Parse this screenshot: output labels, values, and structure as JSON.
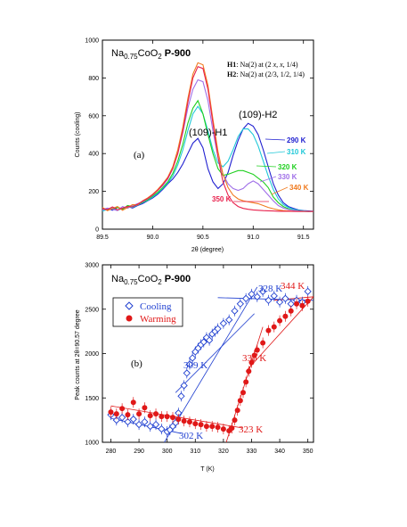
{
  "chart_data": [
    {
      "type": "line",
      "panel_label": "(a)",
      "title": "Na0.75CoO2 P-900",
      "title_parts": {
        "base": "Na",
        "sub1": "0.75",
        "mid": "CoO",
        "sub2": "2",
        "sample": "P-900"
      },
      "xlabel": "2θ (degree)",
      "ylabel": "Counts (cooling)",
      "xlim": [
        89.5,
        91.6
      ],
      "ylim": [
        0,
        1000
      ],
      "xticks": [
        89.5,
        90.0,
        90.5,
        91.0,
        91.5
      ],
      "xtick_labels": [
        "89.5",
        "90.0",
        "90.5",
        "91.0",
        "91.5"
      ],
      "yticks": [
        0,
        200,
        400,
        600,
        800,
        1000
      ],
      "ytick_labels": [
        "0",
        "200",
        "400",
        "600",
        "800",
        "1000"
      ],
      "grid": false,
      "legend_notes": [
        {
          "key": "H1",
          "text": ": Na(2) at (2",
          "italic": "x, x",
          "rest": ", 1/4)"
        },
        {
          "key": "H2",
          "text": ": Na(2) at (2/3, 1/2, 1/4)",
          "italic": "",
          "rest": ""
        }
      ],
      "peak_labels": [
        "(109)-H1",
        "(109)-H2"
      ],
      "series": [
        {
          "name": "290 K",
          "color": "#1f1fd0",
          "x": [
            89.5,
            89.55,
            89.6,
            89.65,
            89.7,
            89.75,
            89.8,
            89.85,
            89.9,
            89.95,
            90.0,
            90.05,
            90.1,
            90.15,
            90.2,
            90.25,
            90.3,
            90.35,
            90.4,
            90.45,
            90.5,
            90.55,
            90.6,
            90.65,
            90.7,
            90.75,
            90.8,
            90.85,
            90.9,
            90.95,
            91.0,
            91.05,
            91.1,
            91.15,
            91.2,
            91.25,
            91.3,
            91.35,
            91.4,
            91.45,
            91.5,
            91.55,
            91.6
          ],
          "y": [
            105,
            110,
            100,
            115,
            108,
            120,
            112,
            125,
            135,
            150,
            165,
            185,
            210,
            240,
            265,
            300,
            345,
            400,
            455,
            480,
            430,
            320,
            250,
            215,
            240,
            300,
            390,
            470,
            530,
            560,
            545,
            500,
            420,
            330,
            240,
            180,
            140,
            120,
            110,
            102,
            98,
            96,
            95
          ]
        },
        {
          "name": "310 K",
          "color": "#20c8d8",
          "x": [
            89.5,
            89.55,
            89.6,
            89.65,
            89.7,
            89.75,
            89.8,
            89.85,
            89.9,
            89.95,
            90.0,
            90.05,
            90.1,
            90.15,
            90.2,
            90.25,
            90.3,
            90.35,
            90.4,
            90.45,
            90.5,
            90.55,
            90.6,
            90.65,
            90.7,
            90.75,
            90.8,
            90.85,
            90.9,
            90.95,
            91.0,
            91.05,
            91.1,
            91.15,
            91.2,
            91.25,
            91.3,
            91.35,
            91.4,
            91.45,
            91.5,
            91.55,
            91.6
          ],
          "y": [
            95,
            105,
            112,
            100,
            110,
            118,
            115,
            128,
            140,
            152,
            170,
            190,
            215,
            245,
            280,
            340,
            420,
            520,
            610,
            650,
            610,
            520,
            420,
            350,
            330,
            360,
            420,
            490,
            530,
            530,
            500,
            440,
            360,
            280,
            210,
            160,
            130,
            115,
            105,
            100,
            97,
            95,
            95
          ]
        },
        {
          "name": "320 K",
          "color": "#20d020",
          "x": [
            89.5,
            89.55,
            89.6,
            89.65,
            89.7,
            89.75,
            89.8,
            89.85,
            89.9,
            89.95,
            90.0,
            90.05,
            90.1,
            90.15,
            90.2,
            90.25,
            90.3,
            90.35,
            90.4,
            90.45,
            90.5,
            90.55,
            90.6,
            90.65,
            90.7,
            90.75,
            90.8,
            90.85,
            90.9,
            90.95,
            91.0,
            91.05,
            91.1,
            91.15,
            91.2,
            91.25,
            91.3,
            91.35,
            91.4,
            91.45,
            91.5,
            91.55,
            91.6
          ],
          "y": [
            110,
            100,
            108,
            115,
            105,
            125,
            120,
            130,
            142,
            155,
            175,
            195,
            220,
            250,
            295,
            360,
            450,
            560,
            640,
            680,
            610,
            500,
            400,
            320,
            285,
            290,
            300,
            310,
            310,
            300,
            290,
            270,
            250,
            220,
            170,
            140,
            120,
            108,
            100,
            97,
            95,
            94,
            94
          ]
        },
        {
          "name": "330 K",
          "color": "#a070e8",
          "x": [
            89.5,
            89.55,
            89.6,
            89.65,
            89.7,
            89.75,
            89.8,
            89.85,
            89.9,
            89.95,
            90.0,
            90.05,
            90.1,
            90.15,
            90.2,
            90.25,
            90.3,
            90.35,
            90.4,
            90.45,
            90.5,
            90.55,
            90.6,
            90.65,
            90.7,
            90.75,
            90.8,
            90.85,
            90.9,
            90.95,
            91.0,
            91.05,
            91.1,
            91.15,
            91.2,
            91.25,
            91.3,
            91.35,
            91.4,
            91.45,
            91.5,
            91.55,
            91.6
          ],
          "y": [
            100,
            112,
            105,
            98,
            120,
            110,
            125,
            135,
            145,
            160,
            180,
            205,
            230,
            265,
            320,
            400,
            510,
            640,
            740,
            790,
            780,
            680,
            520,
            380,
            290,
            240,
            215,
            205,
            215,
            240,
            255,
            240,
            210,
            180,
            150,
            125,
            112,
            104,
            100,
            96,
            95,
            94,
            94
          ]
        },
        {
          "name": "340 K",
          "color": "#f07a1e",
          "x": [
            89.5,
            89.55,
            89.6,
            89.65,
            89.7,
            89.75,
            89.8,
            89.85,
            89.9,
            89.95,
            90.0,
            90.05,
            90.1,
            90.15,
            90.2,
            90.25,
            90.3,
            90.35,
            90.4,
            90.45,
            90.5,
            90.55,
            90.6,
            90.65,
            90.7,
            90.75,
            90.8,
            90.85,
            90.9,
            90.95,
            91.0,
            91.05,
            91.1,
            91.15,
            91.2,
            91.25,
            91.3,
            91.35,
            91.4,
            91.45,
            91.5,
            91.55,
            91.6
          ],
          "y": [
            115,
            98,
            110,
            120,
            100,
            115,
            130,
            128,
            150,
            165,
            185,
            210,
            240,
            275,
            330,
            420,
            540,
            690,
            820,
            880,
            870,
            760,
            580,
            410,
            290,
            220,
            180,
            160,
            150,
            145,
            140,
            135,
            125,
            115,
            108,
            102,
            98,
            96,
            95,
            94,
            94,
            94,
            94
          ]
        },
        {
          "name": "350 K",
          "color": "#e8204c",
          "x": [
            89.5,
            89.55,
            89.6,
            89.65,
            89.7,
            89.75,
            89.8,
            89.85,
            89.9,
            89.95,
            90.0,
            90.05,
            90.1,
            90.15,
            90.2,
            90.25,
            90.3,
            90.35,
            90.4,
            90.45,
            90.5,
            90.55,
            90.6,
            90.65,
            90.7,
            90.75,
            90.8,
            90.85,
            90.9,
            90.95,
            91.0,
            91.05,
            91.1,
            91.15,
            91.2,
            91.25,
            91.3,
            91.35,
            91.4,
            91.45,
            91.5,
            91.55,
            91.6
          ],
          "y": [
            108,
            104,
            118,
            102,
            112,
            120,
            118,
            132,
            148,
            162,
            182,
            205,
            235,
            270,
            320,
            400,
            520,
            670,
            800,
            860,
            850,
            740,
            560,
            380,
            250,
            180,
            140,
            120,
            110,
            105,
            102,
            100,
            98,
            97,
            96,
            95,
            95,
            95,
            94,
            94,
            94,
            94,
            94
          ]
        }
      ],
      "series_label_order": [
        "290 K",
        "310 K",
        "320 K",
        "330 K",
        "340 K",
        "350 K"
      ]
    },
    {
      "type": "scatter",
      "panel_label": "(b)",
      "title": "Na0.75CoO2 P-900",
      "title_parts": {
        "base": "Na",
        "sub1": "0.75",
        "mid": "CoO",
        "sub2": "2",
        "sample": "P-900"
      },
      "xlabel": "T (K)",
      "ylabel": "Peak counts at 2θ=90.57 degree",
      "xlim": [
        277,
        352
      ],
      "ylim": [
        1000,
        3000
      ],
      "xticks": [
        280,
        290,
        300,
        310,
        320,
        330,
        340,
        350
      ],
      "xtick_labels": [
        "280",
        "290",
        "300",
        "310",
        "320",
        "330",
        "340",
        "350"
      ],
      "yticks": [
        1000,
        1500,
        2000,
        2500,
        3000
      ],
      "ytick_labels": [
        "1000",
        "1500",
        "2000",
        "2500",
        "3000"
      ],
      "grid": false,
      "legend_position": "top-left",
      "series": [
        {
          "name": "Cooling",
          "color": "#1f3fd0",
          "marker": "open-diamond",
          "x": [
            280,
            282,
            284,
            286,
            288,
            290,
            292,
            294,
            296,
            298,
            300,
            301,
            302,
            303,
            304,
            305,
            306,
            307,
            308,
            309,
            310,
            311,
            312,
            313,
            314,
            315,
            316,
            317,
            318,
            320,
            322,
            324,
            326,
            328,
            330,
            332,
            334,
            336,
            338,
            340,
            342,
            344,
            346,
            348,
            350
          ],
          "y": [
            1310,
            1250,
            1280,
            1230,
            1260,
            1200,
            1230,
            1180,
            1200,
            1150,
            1120,
            1140,
            1180,
            1220,
            1330,
            1520,
            1640,
            1780,
            1880,
            1950,
            2020,
            2060,
            2100,
            2130,
            2180,
            2150,
            2220,
            2250,
            2280,
            2340,
            2380,
            2480,
            2560,
            2620,
            2670,
            2640,
            2700,
            2600,
            2650,
            2580,
            2620,
            2560,
            2600,
            2580,
            2700
          ]
        },
        {
          "name": "Warming",
          "color": "#e01818",
          "marker": "filled-circle",
          "x": [
            280,
            282,
            284,
            286,
            288,
            290,
            292,
            294,
            296,
            298,
            300,
            302,
            304,
            306,
            308,
            310,
            312,
            314,
            316,
            318,
            320,
            322,
            323,
            324,
            325,
            326,
            327,
            328,
            329,
            330,
            331,
            332,
            334,
            336,
            338,
            340,
            342,
            344,
            346,
            348,
            350
          ],
          "y": [
            1340,
            1320,
            1380,
            1310,
            1450,
            1320,
            1390,
            1300,
            1320,
            1290,
            1290,
            1280,
            1260,
            1240,
            1230,
            1210,
            1200,
            1180,
            1180,
            1170,
            1150,
            1130,
            1160,
            1250,
            1360,
            1470,
            1560,
            1680,
            1800,
            1900,
            1980,
            2040,
            2120,
            2260,
            2300,
            2370,
            2420,
            2480,
            2560,
            2540,
            2590
          ]
        }
      ],
      "annotations": [
        {
          "text": "328 K",
          "color": "#1f3fd0"
        },
        {
          "text": "309 K",
          "color": "#1f3fd0"
        },
        {
          "text": "302 K",
          "color": "#1f3fd0"
        },
        {
          "text": "344 K",
          "color": "#e01818"
        },
        {
          "text": "330 K",
          "color": "#e01818"
        },
        {
          "text": "323 K",
          "color": "#e01818"
        }
      ]
    }
  ]
}
